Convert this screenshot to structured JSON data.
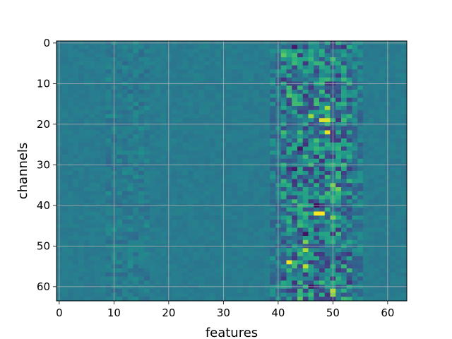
{
  "chart_data": {
    "type": "heatmap",
    "title": "",
    "xlabel": "features",
    "ylabel": "channels",
    "xlim": [
      0,
      63
    ],
    "ylim": [
      63,
      0
    ],
    "y_axis_inverted": true,
    "colormap": "viridis",
    "grid": true,
    "x_ticks": [
      0,
      10,
      20,
      30,
      40,
      50,
      60
    ],
    "y_ticks": [
      0,
      10,
      20,
      30,
      40,
      50,
      60
    ],
    "n_rows": 64,
    "n_cols": 64,
    "background_level": 0.42,
    "active_band_cols": [
      39,
      55
    ],
    "hotspots": [
      {
        "row": 3,
        "col": 41,
        "value": 0.75
      },
      {
        "row": 13,
        "col": 42,
        "value": 0.72
      },
      {
        "row": 16,
        "col": 49,
        "value": 0.88
      },
      {
        "row": 18,
        "col": 46,
        "value": 0.85
      },
      {
        "row": 19,
        "col": 48,
        "value": 0.95
      },
      {
        "row": 19,
        "col": 49,
        "value": 0.95
      },
      {
        "row": 22,
        "col": 49,
        "value": 0.97
      },
      {
        "row": 24,
        "col": 47,
        "value": 0.7
      },
      {
        "row": 35,
        "col": 50,
        "value": 0.8
      },
      {
        "row": 36,
        "col": 51,
        "value": 0.78
      },
      {
        "row": 42,
        "col": 47,
        "value": 1.0
      },
      {
        "row": 42,
        "col": 48,
        "value": 1.0
      },
      {
        "row": 43,
        "col": 50,
        "value": 0.8
      },
      {
        "row": 49,
        "col": 45,
        "value": 0.8
      },
      {
        "row": 51,
        "col": 45,
        "value": 0.88
      },
      {
        "row": 54,
        "col": 42,
        "value": 0.98
      },
      {
        "row": 55,
        "col": 45,
        "value": 0.9
      },
      {
        "row": 61,
        "col": 50,
        "value": 0.9
      },
      {
        "row": 62,
        "col": 50,
        "value": 0.82
      },
      {
        "row": 63,
        "col": 44,
        "value": 0.75
      }
    ],
    "coldspots": [
      {
        "row": 40,
        "col": 47,
        "value": 0.02
      },
      {
        "row": 47,
        "col": 45,
        "value": 0.05
      },
      {
        "row": 60,
        "col": 46,
        "value": 0.05
      },
      {
        "row": 1,
        "col": 43,
        "value": 0.08
      },
      {
        "row": 26,
        "col": 44,
        "value": 0.06
      },
      {
        "row": 31,
        "col": 43,
        "value": 0.08
      }
    ]
  }
}
